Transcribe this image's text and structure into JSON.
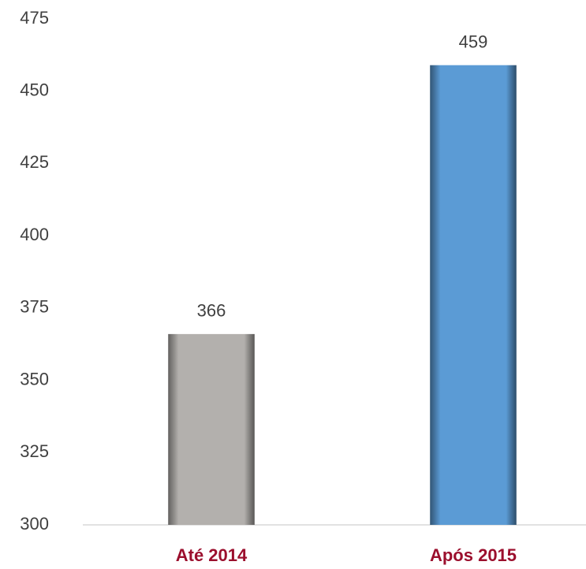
{
  "chart_data": {
    "type": "bar",
    "categories": [
      "Até 2014",
      "Após 2015"
    ],
    "values": [
      366,
      459
    ],
    "colors": [
      "#b3b0ad",
      "#5b9bd5"
    ],
    "ylim": [
      300,
      475
    ],
    "yticks": [
      300,
      325,
      350,
      375,
      400,
      425,
      450,
      475
    ],
    "grid": false
  }
}
